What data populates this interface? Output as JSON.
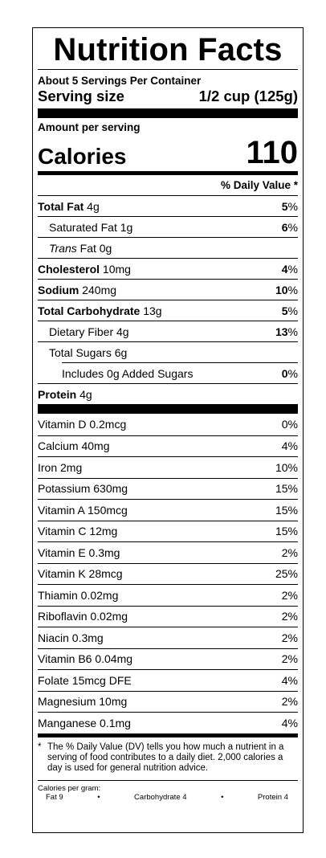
{
  "title": "Nutrition Facts",
  "servings_per_container": "About 5 Servings Per Container",
  "serving_size": {
    "label": "Serving size",
    "value": "1/2 cup (125g)"
  },
  "amount_per_serving": "Amount per serving",
  "calories": {
    "label": "Calories",
    "value": "110"
  },
  "daily_value_header": "% Daily Value *",
  "nutrients": [
    {
      "name": "Total Fat",
      "amount": " 4g",
      "pct_num": "5",
      "pct_sign": "%"
    },
    {
      "name": "Saturated Fat 1g",
      "pct_num": "6",
      "pct_sign": "%"
    },
    {
      "italic": "Trans",
      "name": " Fat 0g"
    },
    {
      "name": "Cholesterol",
      "amount": " 10mg",
      "pct_num": "4",
      "pct_sign": "%"
    },
    {
      "name": "Sodium",
      "amount": " 240mg",
      "pct_num": "10",
      "pct_sign": "%"
    },
    {
      "name": "Total Carbohydrate",
      "amount": " 13g",
      "pct_num": "5",
      "pct_sign": "%"
    },
    {
      "name": "Dietary Fiber 4g",
      "pct_num": "13",
      "pct_sign": "%"
    },
    {
      "name": "Total Sugars 6g"
    },
    {
      "name": "Includes 0g Added Sugars",
      "pct_num": "0",
      "pct_sign": "%"
    },
    {
      "name": "Protein",
      "amount": " 4g"
    }
  ],
  "vitamins": [
    {
      "name": "Vitamin D 0.2mcg",
      "pct": "0%"
    },
    {
      "name": "Calcium 40mg",
      "pct": "4%"
    },
    {
      "name": "Iron 2mg",
      "pct": "10%"
    },
    {
      "name": "Potassium 630mg",
      "pct": "15%"
    },
    {
      "name": "Vitamin A 150mcg",
      "pct": "15%"
    },
    {
      "name": "Vitamin C 12mg",
      "pct": "15%"
    },
    {
      "name": "Vitamin E 0.3mg",
      "pct": "2%"
    },
    {
      "name": "Vitamin K 28mcg",
      "pct": "25%"
    },
    {
      "name": "Thiamin 0.02mg",
      "pct": "2%"
    },
    {
      "name": "Riboflavin 0.02mg",
      "pct": "2%"
    },
    {
      "name": "Niacin 0.3mg",
      "pct": "2%"
    },
    {
      "name": "Vitamin B6 0.04mg",
      "pct": "2%"
    },
    {
      "name": "Folate 15mcg DFE",
      "pct": "4%"
    },
    {
      "name": "Magnesium 10mg",
      "pct": "2%"
    },
    {
      "name": "Manganese 0.1mg",
      "pct": "4%"
    }
  ],
  "footnote": {
    "star": "*",
    "text": "The % Daily Value (DV) tells you how much a nutrient in a serving of food contributes to a daily diet. 2,000 calories a day is used for general nutrition advice."
  },
  "calories_per_gram": {
    "label": "Calories per gram:",
    "fat": "Fat 9",
    "bullet": "•",
    "carb": "Carbohydrate 4",
    "protein": "Protein 4"
  }
}
